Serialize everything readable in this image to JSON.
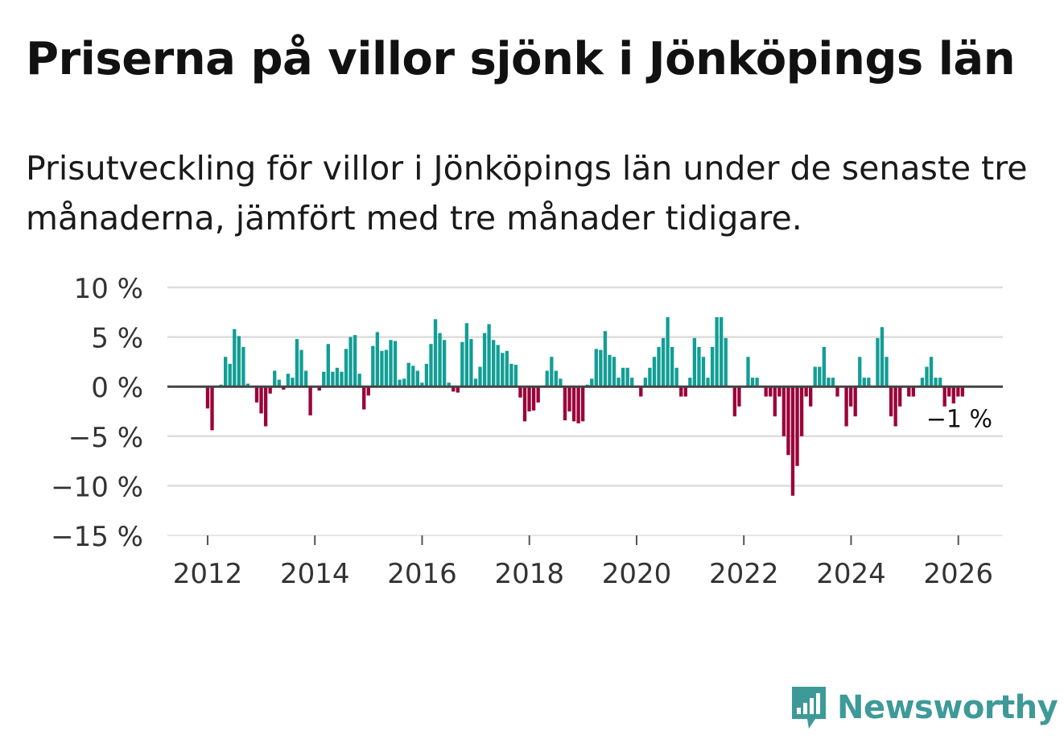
{
  "title": "Priserna på villor sjönk i Jönköpings län",
  "subtitle": "Prisutveckling för villor i Jönköpings län under de senaste tre månaderna, jämfört med tre månader tidigare.",
  "brand": {
    "name": "Newsworthy",
    "color": "#3e9a98"
  },
  "colors": {
    "positive": "#129e95",
    "negative": "#9b0038",
    "grid": "#dddddd",
    "zero": "#444444"
  },
  "chart_data": {
    "type": "bar",
    "title": "",
    "xlabel": "",
    "ylabel": "",
    "ylim": [
      -15,
      10
    ],
    "xlim": [
      2011.25,
      2026.83
    ],
    "yticks": [
      10,
      5,
      0,
      -5,
      -10,
      -15
    ],
    "ytick_labels": [
      "10 %",
      "5 %",
      "0 %",
      "−5 %",
      "−10 %",
      "−15 %"
    ],
    "xticks": [
      2012,
      2014,
      2016,
      2018,
      2020,
      2022,
      2024,
      2026
    ],
    "xtick_labels": [
      "2012",
      "2014",
      "2016",
      "2018",
      "2020",
      "2022",
      "2024",
      "2026"
    ],
    "x_start": 2012.0,
    "x_step": 0.0833,
    "last_label": "−1 %",
    "values": [
      -2.2,
      -4.4,
      -0.1,
      0.2,
      3.0,
      2.3,
      5.8,
      5.1,
      4.0,
      0.3,
      0,
      -1.6,
      -2.7,
      -4.0,
      -0.7,
      1.6,
      0.7,
      -0.3,
      1.3,
      0.9,
      4.8,
      3.7,
      1.6,
      -2.9,
      0,
      -0.4,
      1.5,
      4.3,
      1.5,
      1.9,
      1.5,
      3.8,
      5.0,
      5.2,
      1.3,
      -2.3,
      -0.9,
      4.1,
      5.5,
      3.6,
      3.7,
      4.7,
      4.6,
      0.7,
      0.8,
      2.4,
      2.1,
      1.6,
      0.4,
      2.3,
      4.3,
      6.8,
      5.4,
      4.7,
      0.4,
      -0.5,
      -0.6,
      4.5,
      6.4,
      4.8,
      0.8,
      2.0,
      5.4,
      6.3,
      4.7,
      4.2,
      3.4,
      3.6,
      2.3,
      2.2,
      -1.1,
      -3.5,
      -2.5,
      -2.4,
      -1.6,
      0,
      1.6,
      3.0,
      1.6,
      0.8,
      -3.4,
      -2.5,
      -3.5,
      -3.7,
      -3.5,
      0.2,
      0.8,
      3.8,
      3.7,
      5.6,
      3.2,
      3.0,
      0.9,
      1.9,
      1.9,
      0.9,
      0,
      -1.0,
      0.9,
      1.9,
      3.0,
      4.0,
      4.9,
      7.0,
      4.0,
      1.9,
      -1.0,
      -1.0,
      0.9,
      4.9,
      4.0,
      3.0,
      0.9,
      4.0,
      7.0,
      7.0,
      4.9,
      0,
      -3.0,
      -2.0,
      0,
      3.0,
      0.9,
      0.9,
      0,
      -1.0,
      -1.0,
      -3.0,
      -1.0,
      -5.0,
      -6.9,
      -11.0,
      -8.0,
      -5.0,
      -1.0,
      -2.0,
      2.0,
      2.0,
      4.0,
      0.9,
      0.9,
      -1.0,
      0,
      -4.0,
      -2.0,
      -3.0,
      3.0,
      0.9,
      0.9,
      0,
      4.9,
      6.0,
      3.0,
      -3.0,
      -4.0,
      -2.0,
      0,
      -1.0,
      -1.0,
      0,
      0.9,
      2.0,
      3.0,
      0.9,
      0.9,
      -2.0,
      -1.0,
      -1.7,
      -1.0,
      -1.0
    ]
  }
}
